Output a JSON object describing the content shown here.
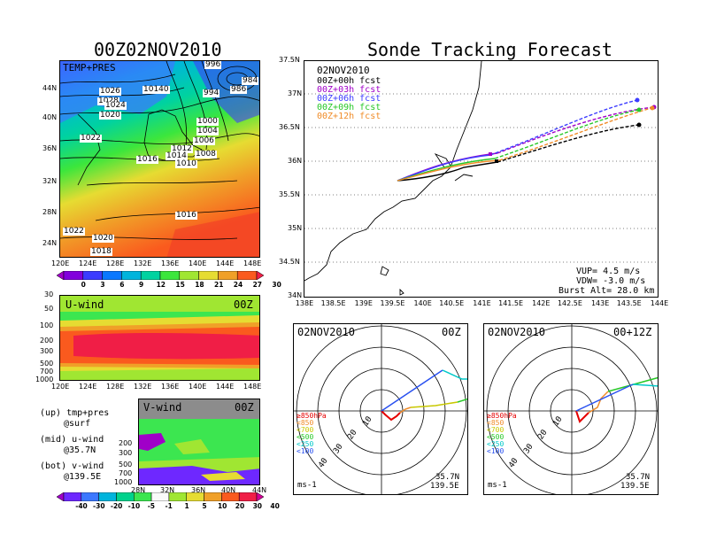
{
  "left_title": "00Z02NOV2010",
  "right_title": "Sonde Tracking Forecast",
  "map_panel": {
    "label": "TEMP+PRES",
    "isobars": [
      "996",
      "986",
      "984",
      "1026",
      "10140",
      "1028",
      "994",
      "1024",
      "1020",
      "1000",
      "1004",
      "1006",
      "1022",
      "1012",
      "1016",
      "1014",
      "1010",
      "1008",
      "1016",
      "1022",
      "1020",
      "1018"
    ],
    "y_ticks": [
      "44N",
      "40N",
      "36N",
      "32N",
      "28N",
      "24N"
    ],
    "x_ticks": [
      "120E",
      "124E",
      "128E",
      "132E",
      "136E",
      "140E",
      "144E",
      "148E"
    ]
  },
  "temp_colorbar": {
    "ticks": [
      "0",
      "3",
      "6",
      "9",
      "12",
      "15",
      "18",
      "21",
      "24",
      "27",
      "30"
    ],
    "colors": [
      "#a000c8",
      "#8200dc",
      "#3c3cff",
      "#0a78ff",
      "#00b4dc",
      "#00d2a0",
      "#3ce63c",
      "#a0e632",
      "#e6dc32",
      "#f0a028",
      "#fa5a1e",
      "#f01e46"
    ]
  },
  "uwind_panel": {
    "label": "U-wind",
    "time": "00Z",
    "y_ticks": [
      "30",
      "50",
      "100",
      "200",
      "300",
      "500",
      "700",
      "1000"
    ],
    "x_ticks": [
      "120E",
      "124E",
      "128E",
      "132E",
      "136E",
      "140E",
      "144E",
      "148E"
    ]
  },
  "vwind_panel": {
    "label": "V-wind",
    "time": "00Z",
    "y_ticks": [
      "200",
      "300",
      "500",
      "700",
      "1000"
    ],
    "x_ticks": [
      "28N",
      "32N",
      "36N",
      "40N",
      "44N"
    ]
  },
  "wind_colorbar": {
    "ticks": [
      "-40",
      "-30",
      "-20",
      "-10",
      "-5",
      "-1",
      "1",
      "5",
      "10",
      "20",
      "30",
      "40"
    ],
    "colors": [
      "#a000c8",
      "#6e28ff",
      "#3c78ff",
      "#00b4dc",
      "#00d28c",
      "#3ce650",
      "#fafafa",
      "#a0e632",
      "#e6dc32",
      "#f0a028",
      "#fa5a1e",
      "#f01e46",
      "#d20096"
    ]
  },
  "side_notes": [
    {
      "line1": "(up) tmp+pres",
      "line2": "@surf"
    },
    {
      "line1": "(mid) u-wind",
      "line2": "@35.7N"
    },
    {
      "line1": "(bot) v-wind",
      "line2": "@139.5E"
    }
  ],
  "track_panel": {
    "date": "02NOV2010",
    "legend": [
      {
        "label": "00Z+00h fcst",
        "color": "#000000"
      },
      {
        "label": "00Z+03h fcst",
        "color": "#a000c8"
      },
      {
        "label": "00Z+06h fcst",
        "color": "#3c3cff"
      },
      {
        "label": "00Z+09h fcst",
        "color": "#28c828"
      },
      {
        "label": "00Z+12h fcst",
        "color": "#f08c28"
      }
    ],
    "y_ticks": [
      "37.5N",
      "37N",
      "36.5N",
      "36N",
      "35.5N",
      "35N",
      "34.5N",
      "34N"
    ],
    "x_ticks": [
      "138E",
      "138.5E",
      "139E",
      "139.5E",
      "140E",
      "140.5E",
      "141E",
      "141.5E",
      "142E",
      "142.5E",
      "143E",
      "143.5E",
      "144E"
    ],
    "vup": "VUP= 4.5 m/s",
    "vdw": "VDW= -3.0 m/s",
    "burst": "Burst Alt= 28.0 km"
  },
  "hodo_left": {
    "date": "02NOV2010",
    "time": "00Z",
    "rings": [
      "10",
      "20",
      "30",
      "40"
    ],
    "levels": [
      {
        "label": "≥850hPa",
        "color": "#e60000"
      },
      {
        "label": "<850",
        "color": "#f08c28"
      },
      {
        "label": "<700",
        "color": "#c8c800"
      },
      {
        "label": "<500",
        "color": "#28c828"
      },
      {
        "label": "<250",
        "color": "#00c8c8"
      },
      {
        "label": "<100",
        "color": "#2850f0"
      }
    ],
    "units": "ms-1",
    "lat": "35.7N",
    "lon": "139.5E"
  },
  "hodo_right": {
    "date": "02NOV2010",
    "time": "00+12Z",
    "rings": [
      "10",
      "20",
      "30",
      "40"
    ],
    "levels": [
      {
        "label": "≥850hPa",
        "color": "#e60000"
      },
      {
        "label": "<850",
        "color": "#f08c28"
      },
      {
        "label": "<700",
        "color": "#c8c800"
      },
      {
        "label": "<500",
        "color": "#28c828"
      },
      {
        "label": "<250",
        "color": "#00c8c8"
      },
      {
        "label": "<100",
        "color": "#2850f0"
      }
    ],
    "units": "ms-1",
    "lat": "35.7N",
    "lon": "139.5E"
  }
}
